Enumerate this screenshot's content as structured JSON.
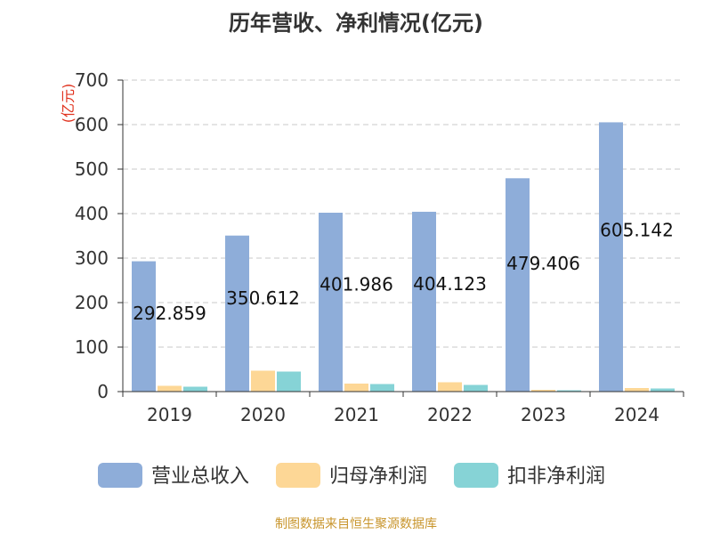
{
  "title": "历年营收、净利情况(亿元)",
  "source": "制图数据来自恒生聚源数据库",
  "colors": {
    "revenue": "#8eadd9",
    "parent_net_profit": "#fdd796",
    "deducted_net_profit": "#86d3d6",
    "grid": "#c8c8c8",
    "axis": "#333333",
    "unit_label": "#e0321e",
    "source": "#c8952c"
  },
  "chart_data": {
    "type": "bar",
    "title": "历年营收、净利情况(亿元)",
    "ylabel": "(亿元)",
    "ylim": [
      0,
      700
    ],
    "yticks": [
      0,
      100,
      200,
      300,
      400,
      500,
      600,
      700
    ],
    "grid": true,
    "legend_position": "bottom",
    "categories": [
      "2019",
      "2020",
      "2021",
      "2022",
      "2023",
      "2024"
    ],
    "series": [
      {
        "name": "营业总收入",
        "values": [
          292.859,
          350.612,
          401.986,
          404.123,
          479.406,
          605.142
        ]
      },
      {
        "name": "归母净利润",
        "values": [
          13,
          47,
          18,
          21,
          4,
          8
        ]
      },
      {
        "name": "扣非净利润",
        "values": [
          11,
          45,
          17,
          15,
          3,
          7
        ]
      }
    ],
    "data_labels": [
      "292.859",
      "350.612",
      "401.986",
      "404.123",
      "479.406",
      "605.142"
    ]
  }
}
